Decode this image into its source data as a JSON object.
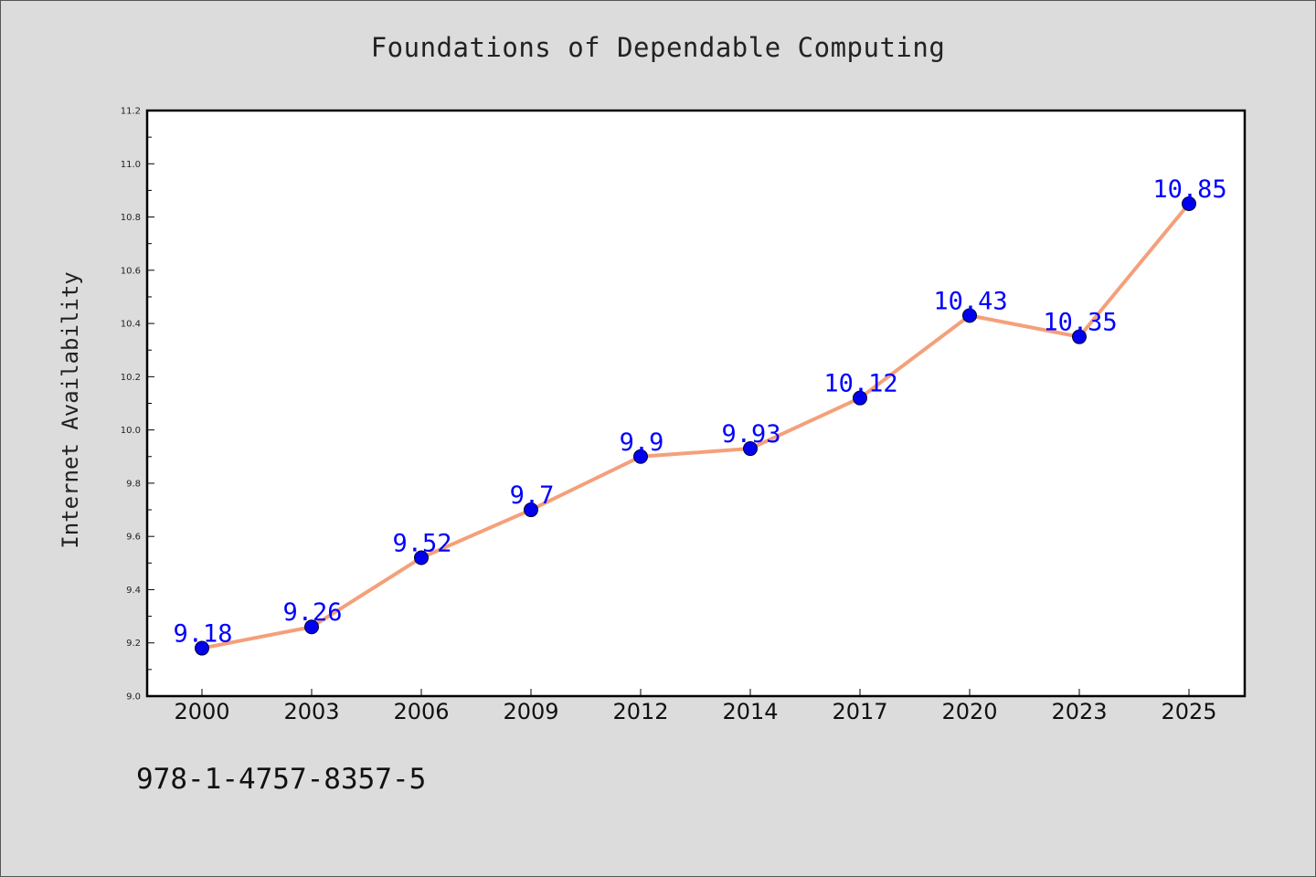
{
  "chart_data": {
    "type": "line",
    "title": "Foundations of Dependable Computing",
    "xlabel": "",
    "ylabel": "Internet Availability",
    "categories": [
      "2000",
      "2003",
      "2006",
      "2009",
      "2012",
      "2014",
      "2017",
      "2020",
      "2023",
      "2025"
    ],
    "series": [
      {
        "values": [
          9.18,
          9.26,
          9.52,
          9.7,
          9.9,
          9.93,
          10.12,
          10.43,
          10.35,
          10.85
        ],
        "data_labels": [
          "9.18",
          "9.26",
          "9.52",
          "9.7",
          "9.9",
          "9.93",
          "10.12",
          "10.43",
          "10.35",
          "10.85"
        ],
        "line_color": "#f4a07a",
        "marker_color": "#0000ee"
      }
    ],
    "ylim": [
      9.0,
      11.2
    ],
    "yticks": [
      "9.0",
      "9.2",
      "9.4",
      "9.6",
      "9.8",
      "10.0",
      "10.2",
      "10.4",
      "10.6",
      "10.8",
      "11.0",
      "11.2"
    ],
    "grid": false,
    "legend": "none"
  },
  "footer": {
    "isbn": "978-1-4757-8357-5"
  },
  "colors": {
    "background": "#dcdcdc",
    "plot_background": "#ffffff",
    "data_label": "#0000ff"
  }
}
